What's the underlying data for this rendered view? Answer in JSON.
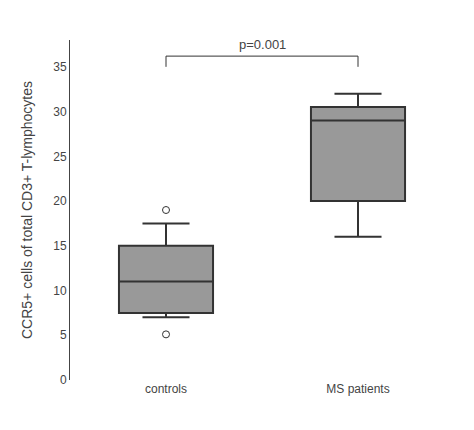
{
  "chart_data": {
    "type": "box",
    "categories": [
      "controls",
      "MS patients"
    ],
    "boxes": [
      {
        "q1": 7.5,
        "median": 11,
        "q3": 15,
        "whisker_low": 7.0,
        "whisker_high": 17.5,
        "outliers": [
          5.1,
          19.0
        ]
      },
      {
        "q1": 20.0,
        "median": 29.0,
        "q3": 30.5,
        "whisker_low": 16.0,
        "whisker_high": 32.0,
        "outliers": []
      }
    ],
    "ylabel": "CCR5+ cells of total CD3+ T-lymphocytes",
    "ylim": [
      0,
      38
    ],
    "yticks": [
      0,
      5,
      10,
      15,
      20,
      25,
      30,
      35
    ],
    "color": "#333333",
    "marker": "circle",
    "grid": false,
    "annotations": [
      {
        "text": "p=0.001",
        "y": 36.2,
        "bracket_drop": 1.2,
        "from": "controls",
        "to": "MS patients"
      }
    ]
  }
}
